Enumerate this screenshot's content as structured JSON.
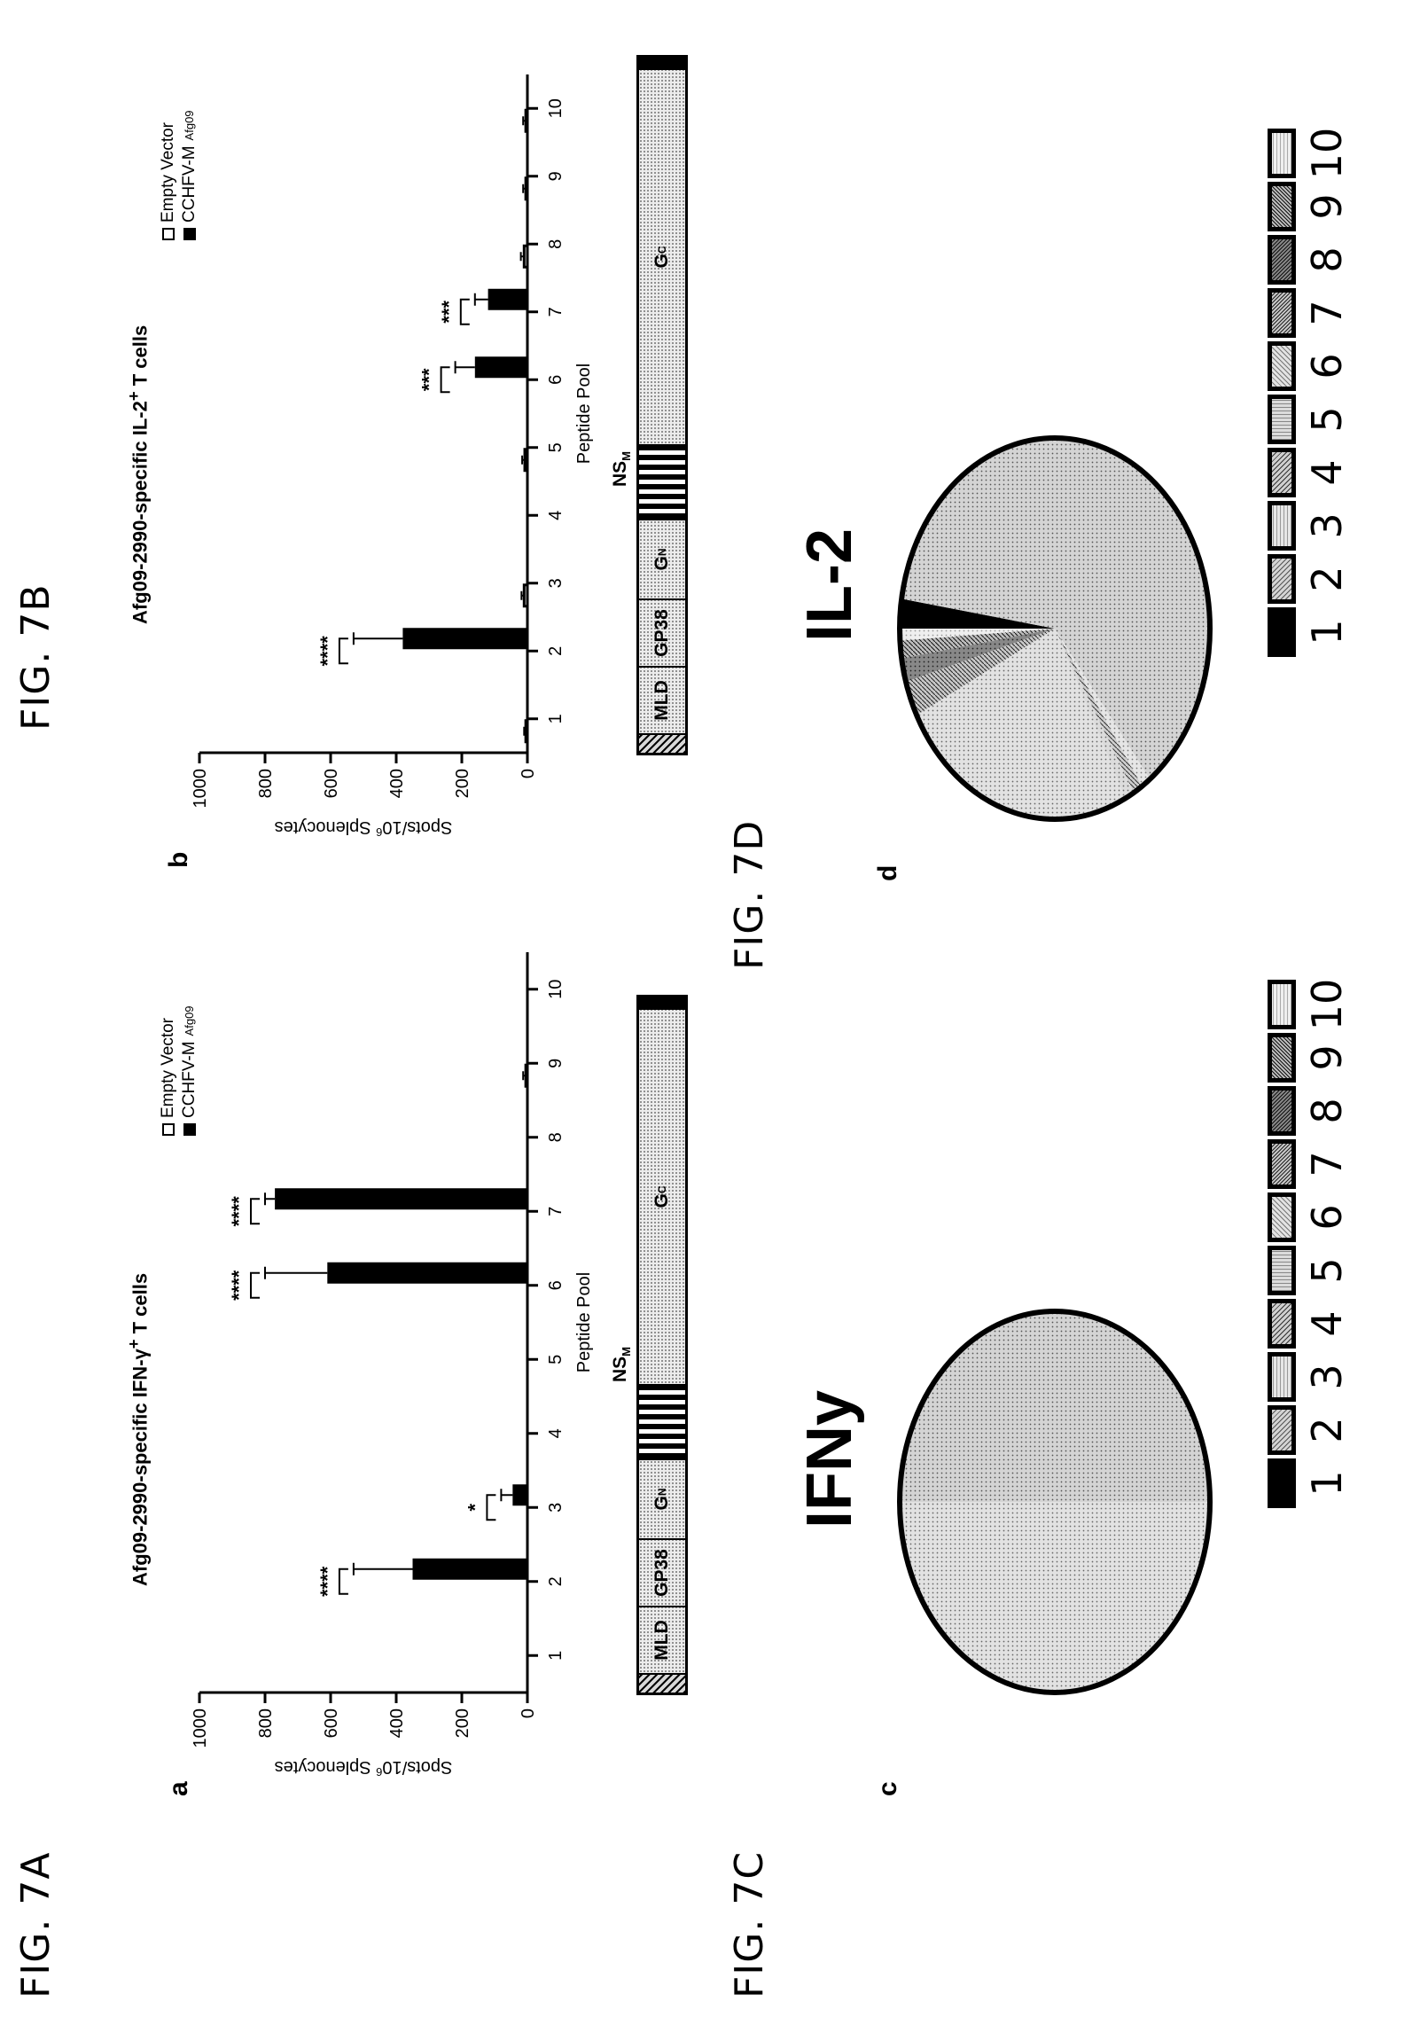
{
  "figures": {
    "fig_7a": "FIG. 7A",
    "fig_7b": "FIG. 7B",
    "fig_7c": "FIG. 7C",
    "fig_7d": "FIG. 7D"
  },
  "panels": {
    "a": "a",
    "b": "b",
    "c": "c",
    "d": "d"
  },
  "legend": {
    "empty_vector": "Empty Vector",
    "cchfv_main": "CCHFV-M",
    "cchfv_sub": "Afg09"
  },
  "domains": {
    "mld": "MLD",
    "gp38": "GP38",
    "gn_main": "G",
    "gn_sub": "N",
    "gc_main": "G",
    "gc_sub": "C",
    "nsm_main": "NS",
    "nsm_sub": "M"
  },
  "pie_titles": {
    "c": "IFNy",
    "d": "IL-2"
  },
  "pie_legend": [
    "1",
    "2",
    "3",
    "4",
    "5",
    "6",
    "7",
    "8",
    "9",
    "10"
  ],
  "colors": {
    "ink": "#000000",
    "paper": "#ffffff",
    "fill_light_dot": "#e6e6e6"
  },
  "chart_data": [
    {
      "id": "7A",
      "type": "bar",
      "title_parts": [
        "Afg09-2990-specific IFN-",
        "γ",
        "+",
        " T cells"
      ],
      "xlabel": "Peptide Pool",
      "ylabel_parts": [
        "Spots/10",
        "6",
        " Splenocytes"
      ],
      "ylim": [
        0,
        1000
      ],
      "yticks": [
        0,
        200,
        400,
        600,
        800,
        1000
      ],
      "categories": [
        "1",
        "2",
        "3",
        "4",
        "5",
        "6",
        "7",
        "8",
        "9",
        "10"
      ],
      "series": [
        {
          "name": "Empty Vector",
          "values": [
            0,
            0,
            0,
            0,
            0,
            0,
            0,
            0,
            5,
            0
          ],
          "errors": [
            0,
            0,
            0,
            0,
            0,
            0,
            0,
            0,
            8,
            0
          ]
        },
        {
          "name": "CCHFV-M Afg09",
          "values": [
            0,
            350,
            45,
            0,
            0,
            610,
            770,
            0,
            0,
            0
          ],
          "errors": [
            0,
            180,
            35,
            0,
            0,
            190,
            30,
            0,
            0,
            0
          ]
        }
      ],
      "annotations": [
        {
          "category": "2",
          "text": "****"
        },
        {
          "category": "3",
          "text": "*"
        },
        {
          "category": "6",
          "text": "****"
        },
        {
          "category": "7",
          "text": "****"
        }
      ],
      "legend_position": "top-right",
      "grid": false
    },
    {
      "id": "7B",
      "type": "bar",
      "title_parts": [
        "Afg09-2990-specific IL-2",
        "",
        "+",
        " T cells"
      ],
      "xlabel": "Peptide Pool",
      "ylabel_parts": [
        "Spots/10",
        "6",
        " Splenocytes"
      ],
      "ylim": [
        0,
        1000
      ],
      "yticks": [
        0,
        200,
        400,
        600,
        800,
        1000
      ],
      "categories": [
        "1",
        "2",
        "3",
        "4",
        "5",
        "6",
        "7",
        "8",
        "9",
        "10"
      ],
      "series": [
        {
          "name": "Empty Vector",
          "values": [
            5,
            0,
            10,
            0,
            8,
            0,
            0,
            10,
            5,
            5
          ],
          "errors": [
            5,
            0,
            8,
            0,
            8,
            0,
            0,
            10,
            8,
            8
          ]
        },
        {
          "name": "CCHFV-M Afg09",
          "values": [
            0,
            380,
            0,
            0,
            0,
            160,
            120,
            0,
            0,
            0
          ],
          "errors": [
            0,
            150,
            0,
            0,
            0,
            60,
            40,
            0,
            0,
            0
          ]
        }
      ],
      "annotations": [
        {
          "category": "2",
          "text": "****"
        },
        {
          "category": "6",
          "text": "***"
        },
        {
          "category": "7",
          "text": "***"
        }
      ],
      "legend_position": "top-right",
      "grid": false
    },
    {
      "id": "7C",
      "type": "pie",
      "title": "IFNy",
      "labels": [
        "1",
        "2",
        "3",
        "4",
        "5",
        "6",
        "7",
        "8",
        "9",
        "10"
      ],
      "values": [
        0,
        0.5,
        0,
        0,
        0,
        0.5,
        0,
        0,
        0,
        0
      ]
    },
    {
      "id": "7D",
      "type": "pie",
      "title": "IL-2",
      "labels": [
        "1",
        "2",
        "3",
        "4",
        "5",
        "6",
        "7",
        "8",
        "9",
        "10"
      ],
      "values": [
        0.025,
        0.62,
        0.01,
        0.01,
        0.01,
        0.25,
        0.03,
        0.02,
        0.015,
        0.01
      ]
    }
  ]
}
